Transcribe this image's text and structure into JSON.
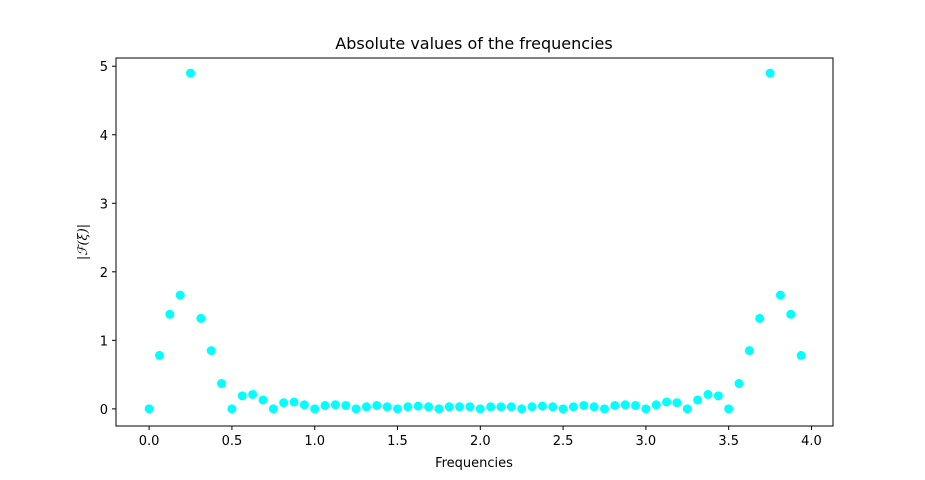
{
  "chart_data": {
    "type": "scatter",
    "title": "Absolute values of the frequencies",
    "xlabel": "Frequencies",
    "ylabel": "|ℱ(ξ)|",
    "xlim": [
      -0.2,
      4.13
    ],
    "ylim": [
      -0.25,
      5.12
    ],
    "xticks": [
      0.0,
      0.5,
      1.0,
      1.5,
      2.0,
      2.5,
      3.0,
      3.5,
      4.0
    ],
    "xtick_labels": [
      "0.0",
      "0.5",
      "1.0",
      "1.5",
      "2.0",
      "2.5",
      "3.0",
      "3.5",
      "4.0"
    ],
    "yticks": [
      0,
      1,
      2,
      3,
      4,
      5
    ],
    "ytick_labels": [
      "0",
      "1",
      "2",
      "3",
      "4",
      "5"
    ],
    "grid": false,
    "marker_color": "#00ffff",
    "x": [
      0.0,
      0.0625,
      0.125,
      0.1875,
      0.25,
      0.3125,
      0.375,
      0.4375,
      0.5,
      0.5625,
      0.625,
      0.6875,
      0.75,
      0.8125,
      0.875,
      0.9375,
      1.0,
      1.0625,
      1.125,
      1.1875,
      1.25,
      1.3125,
      1.375,
      1.4375,
      1.5,
      1.5625,
      1.625,
      1.6875,
      1.75,
      1.8125,
      1.875,
      1.9375,
      2.0,
      2.0625,
      2.125,
      2.1875,
      2.25,
      2.3125,
      2.375,
      2.4375,
      2.5,
      2.5625,
      2.625,
      2.6875,
      2.75,
      2.8125,
      2.875,
      2.9375,
      3.0,
      3.0625,
      3.125,
      3.1875,
      3.25,
      3.3125,
      3.375,
      3.4375,
      3.5,
      3.5625,
      3.625,
      3.6875,
      3.75,
      3.8125,
      3.875,
      3.9375
    ],
    "y": [
      0.0,
      0.78,
      1.38,
      1.66,
      4.9,
      1.32,
      0.85,
      0.37,
      0.0,
      0.19,
      0.21,
      0.13,
      0.0,
      0.09,
      0.1,
      0.06,
      0.0,
      0.05,
      0.06,
      0.05,
      0.0,
      0.03,
      0.05,
      0.03,
      0.0,
      0.03,
      0.04,
      0.03,
      0.0,
      0.03,
      0.03,
      0.03,
      0.0,
      0.03,
      0.03,
      0.03,
      0.0,
      0.03,
      0.04,
      0.03,
      0.0,
      0.03,
      0.05,
      0.03,
      0.0,
      0.05,
      0.06,
      0.05,
      0.0,
      0.06,
      0.1,
      0.09,
      0.0,
      0.13,
      0.21,
      0.19,
      0.0,
      0.37,
      0.85,
      1.32,
      4.9,
      1.66,
      1.38,
      0.78
    ]
  }
}
